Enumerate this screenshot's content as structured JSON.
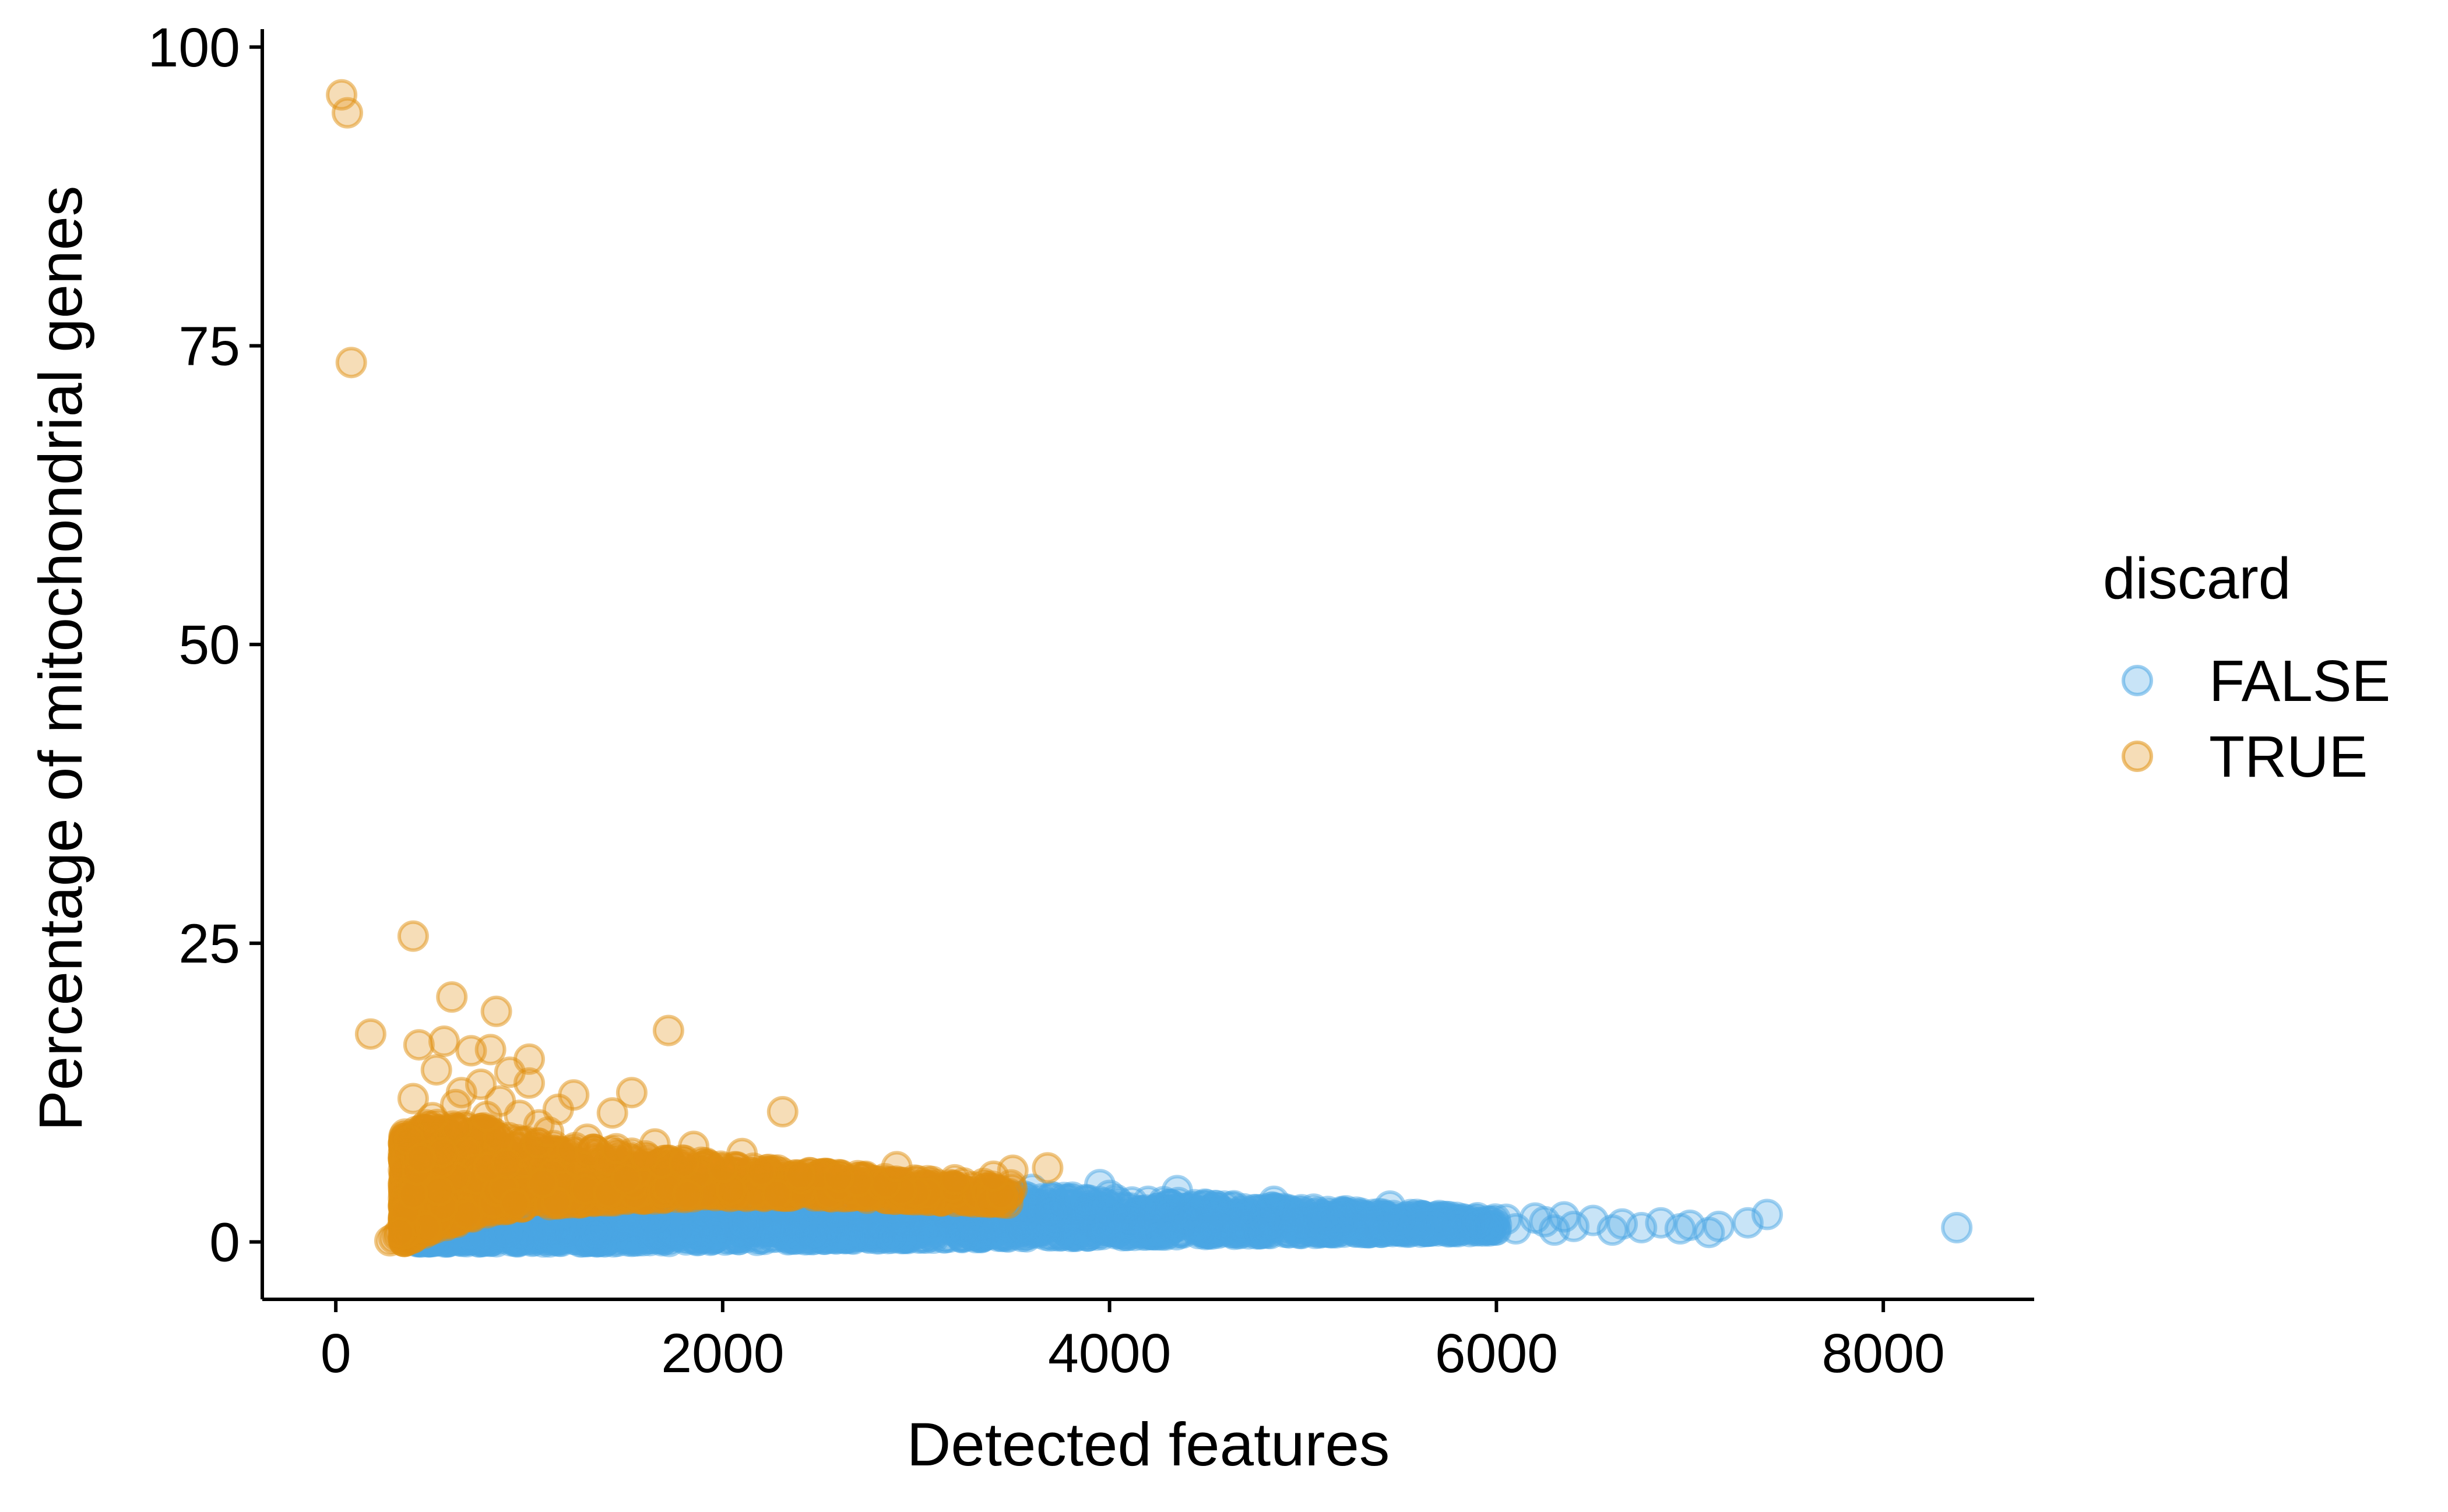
{
  "chart_data": {
    "type": "scatter",
    "xlabel": "Detected features",
    "ylabel": "Percentage of mitochondrial genes",
    "xlim": [
      -380,
      8780
    ],
    "ylim": [
      -4.8,
      101.5
    ],
    "x_ticks": [
      0,
      2000,
      4000,
      6000,
      8000
    ],
    "x_tick_labels": [
      "0",
      "2000",
      "4000",
      "6000",
      "8000"
    ],
    "y_ticks": [
      0,
      25,
      50,
      75,
      100
    ],
    "y_tick_labels": [
      "0",
      "25",
      "50",
      "75",
      "100"
    ],
    "grid": false,
    "legend": {
      "title": "discard",
      "placement": "right",
      "entries": [
        "FALSE",
        "TRUE"
      ]
    },
    "colors": {
      "FALSE": "#4aa5e3",
      "TRUE": "#e0900f"
    },
    "series": [
      {
        "name": "FALSE",
        "points": [
          [
            7400,
            2.3
          ],
          [
            7300,
            1.6
          ],
          [
            7150,
            1.3
          ],
          [
            7100,
            0.8
          ],
          [
            7000,
            1.4
          ],
          [
            6950,
            1.1
          ],
          [
            6850,
            1.6
          ],
          [
            6750,
            1.2
          ],
          [
            6650,
            1.5
          ],
          [
            6600,
            1.0
          ],
          [
            6500,
            1.8
          ],
          [
            6400,
            1.3
          ],
          [
            6350,
            2.1
          ],
          [
            6300,
            1.0
          ],
          [
            6250,
            1.7
          ],
          [
            6200,
            2.0
          ],
          [
            6100,
            1.1
          ],
          [
            6050,
            1.9
          ],
          [
            6000,
            1.4
          ],
          [
            5950,
            1.0
          ],
          [
            5900,
            1.6
          ],
          [
            5800,
            1.3
          ],
          [
            5700,
            1.8
          ],
          [
            5600,
            1.1
          ],
          [
            5500,
            1.9
          ],
          [
            5450,
            3.0
          ],
          [
            5400,
            1.2
          ],
          [
            5300,
            2.4
          ],
          [
            5200,
            1.5
          ],
          [
            5100,
            2.2
          ],
          [
            5000,
            1.6
          ],
          [
            4900,
            2.8
          ],
          [
            4850,
            3.4
          ],
          [
            4800,
            1.9
          ],
          [
            4700,
            2.5
          ],
          [
            4600,
            1.4
          ],
          [
            4500,
            3.1
          ],
          [
            4400,
            2.0
          ],
          [
            4350,
            4.3
          ],
          [
            4300,
            2.6
          ],
          [
            4200,
            3.4
          ],
          [
            4100,
            2.0
          ],
          [
            4000,
            3.9
          ],
          [
            3950,
            4.8
          ],
          [
            3900,
            2.8
          ],
          [
            3800,
            3.6
          ],
          [
            3700,
            2.4
          ],
          [
            3600,
            4.4
          ],
          [
            3500,
            3.0
          ],
          [
            3400,
            4.0
          ],
          [
            3300,
            3.4
          ],
          [
            3200,
            4.5
          ],
          [
            3100,
            2.8
          ],
          [
            3000,
            4.0
          ],
          [
            8380,
            1.2
          ],
          [
            1000,
            3.0
          ],
          [
            1500,
            3.5
          ],
          [
            2000,
            3.2
          ],
          [
            2500,
            3.0
          ],
          [
            900,
            4.0
          ],
          [
            1200,
            4.2
          ],
          [
            1800,
            4.5
          ],
          [
            2200,
            4.2
          ],
          [
            700,
            4.6
          ],
          [
            600,
            3.8
          ]
        ],
        "dense_region": {
          "description_points_x": [
            420,
            1000,
            1500,
            2000,
            2500,
            3000,
            3500,
            4000,
            4500,
            5000,
            5500,
            6000
          ],
          "upper_y": [
            4.2,
            4.8,
            4.8,
            4.8,
            4.5,
            4.4,
            4.0,
            3.6,
            3.2,
            2.8,
            2.4,
            2.0
          ],
          "lower_y": [
            0.0,
            0.0,
            0.0,
            0.1,
            0.2,
            0.3,
            0.4,
            0.5,
            0.6,
            0.7,
            0.8,
            0.9
          ]
        }
      },
      {
        "name": "TRUE",
        "points": [
          [
            30,
            96.0
          ],
          [
            60,
            94.5
          ],
          [
            80,
            73.6
          ],
          [
            400,
            25.6
          ],
          [
            180,
            17.4
          ],
          [
            600,
            20.5
          ],
          [
            830,
            19.3
          ],
          [
            1720,
            17.7
          ],
          [
            430,
            16.5
          ],
          [
            560,
            16.8
          ],
          [
            700,
            16.0
          ],
          [
            800,
            16.1
          ],
          [
            1000,
            15.3
          ],
          [
            520,
            14.4
          ],
          [
            900,
            14.2
          ],
          [
            1000,
            13.3
          ],
          [
            1530,
            12.5
          ],
          [
            1230,
            12.3
          ],
          [
            620,
            11.5
          ],
          [
            1150,
            11.1
          ],
          [
            1430,
            10.8
          ],
          [
            2310,
            10.9
          ],
          [
            780,
            10.5
          ],
          [
            1050,
            9.8
          ],
          [
            1650,
            8.2
          ],
          [
            1850,
            8.0
          ],
          [
            2100,
            7.4
          ],
          [
            2900,
            6.3
          ],
          [
            3500,
            6.0
          ],
          [
            3680,
            6.2
          ],
          [
            3400,
            5.5
          ],
          [
            3200,
            5.2
          ],
          [
            2700,
            5.0
          ],
          [
            2500,
            5.6
          ],
          [
            400,
            12.0
          ],
          [
            450,
            9.5
          ],
          [
            380,
            8.5
          ],
          [
            500,
            10.4
          ],
          [
            650,
            12.5
          ],
          [
            750,
            13.2
          ],
          [
            850,
            11.8
          ],
          [
            950,
            10.6
          ],
          [
            1100,
            9.2
          ],
          [
            1300,
            8.6
          ],
          [
            1450,
            7.8
          ],
          [
            1600,
            7.2
          ],
          [
            1800,
            6.6
          ],
          [
            2000,
            6.2
          ],
          [
            2200,
            5.9
          ],
          [
            2400,
            5.6
          ],
          [
            2600,
            5.4
          ],
          [
            300,
            0.3
          ],
          [
            280,
            0.1
          ],
          [
            320,
            0.5
          ],
          [
            350,
            1.2
          ],
          [
            360,
            2.5
          ],
          [
            330,
            0.8
          ],
          [
            400,
            4.0
          ],
          [
            420,
            6.0
          ],
          [
            440,
            7.0
          ]
        ],
        "dense_region": {
          "description_points_x": [
            350,
            500,
            800,
            1000,
            1500,
            2000,
            2500,
            3000,
            3500
          ],
          "upper_y": [
            9.0,
            10.0,
            9.5,
            8.5,
            7.5,
            6.5,
            5.8,
            5.2,
            4.8
          ],
          "lower_y": [
            0.0,
            1.0,
            2.5,
            3.0,
            3.5,
            3.8,
            3.8,
            3.5,
            3.2
          ]
        }
      }
    ]
  }
}
